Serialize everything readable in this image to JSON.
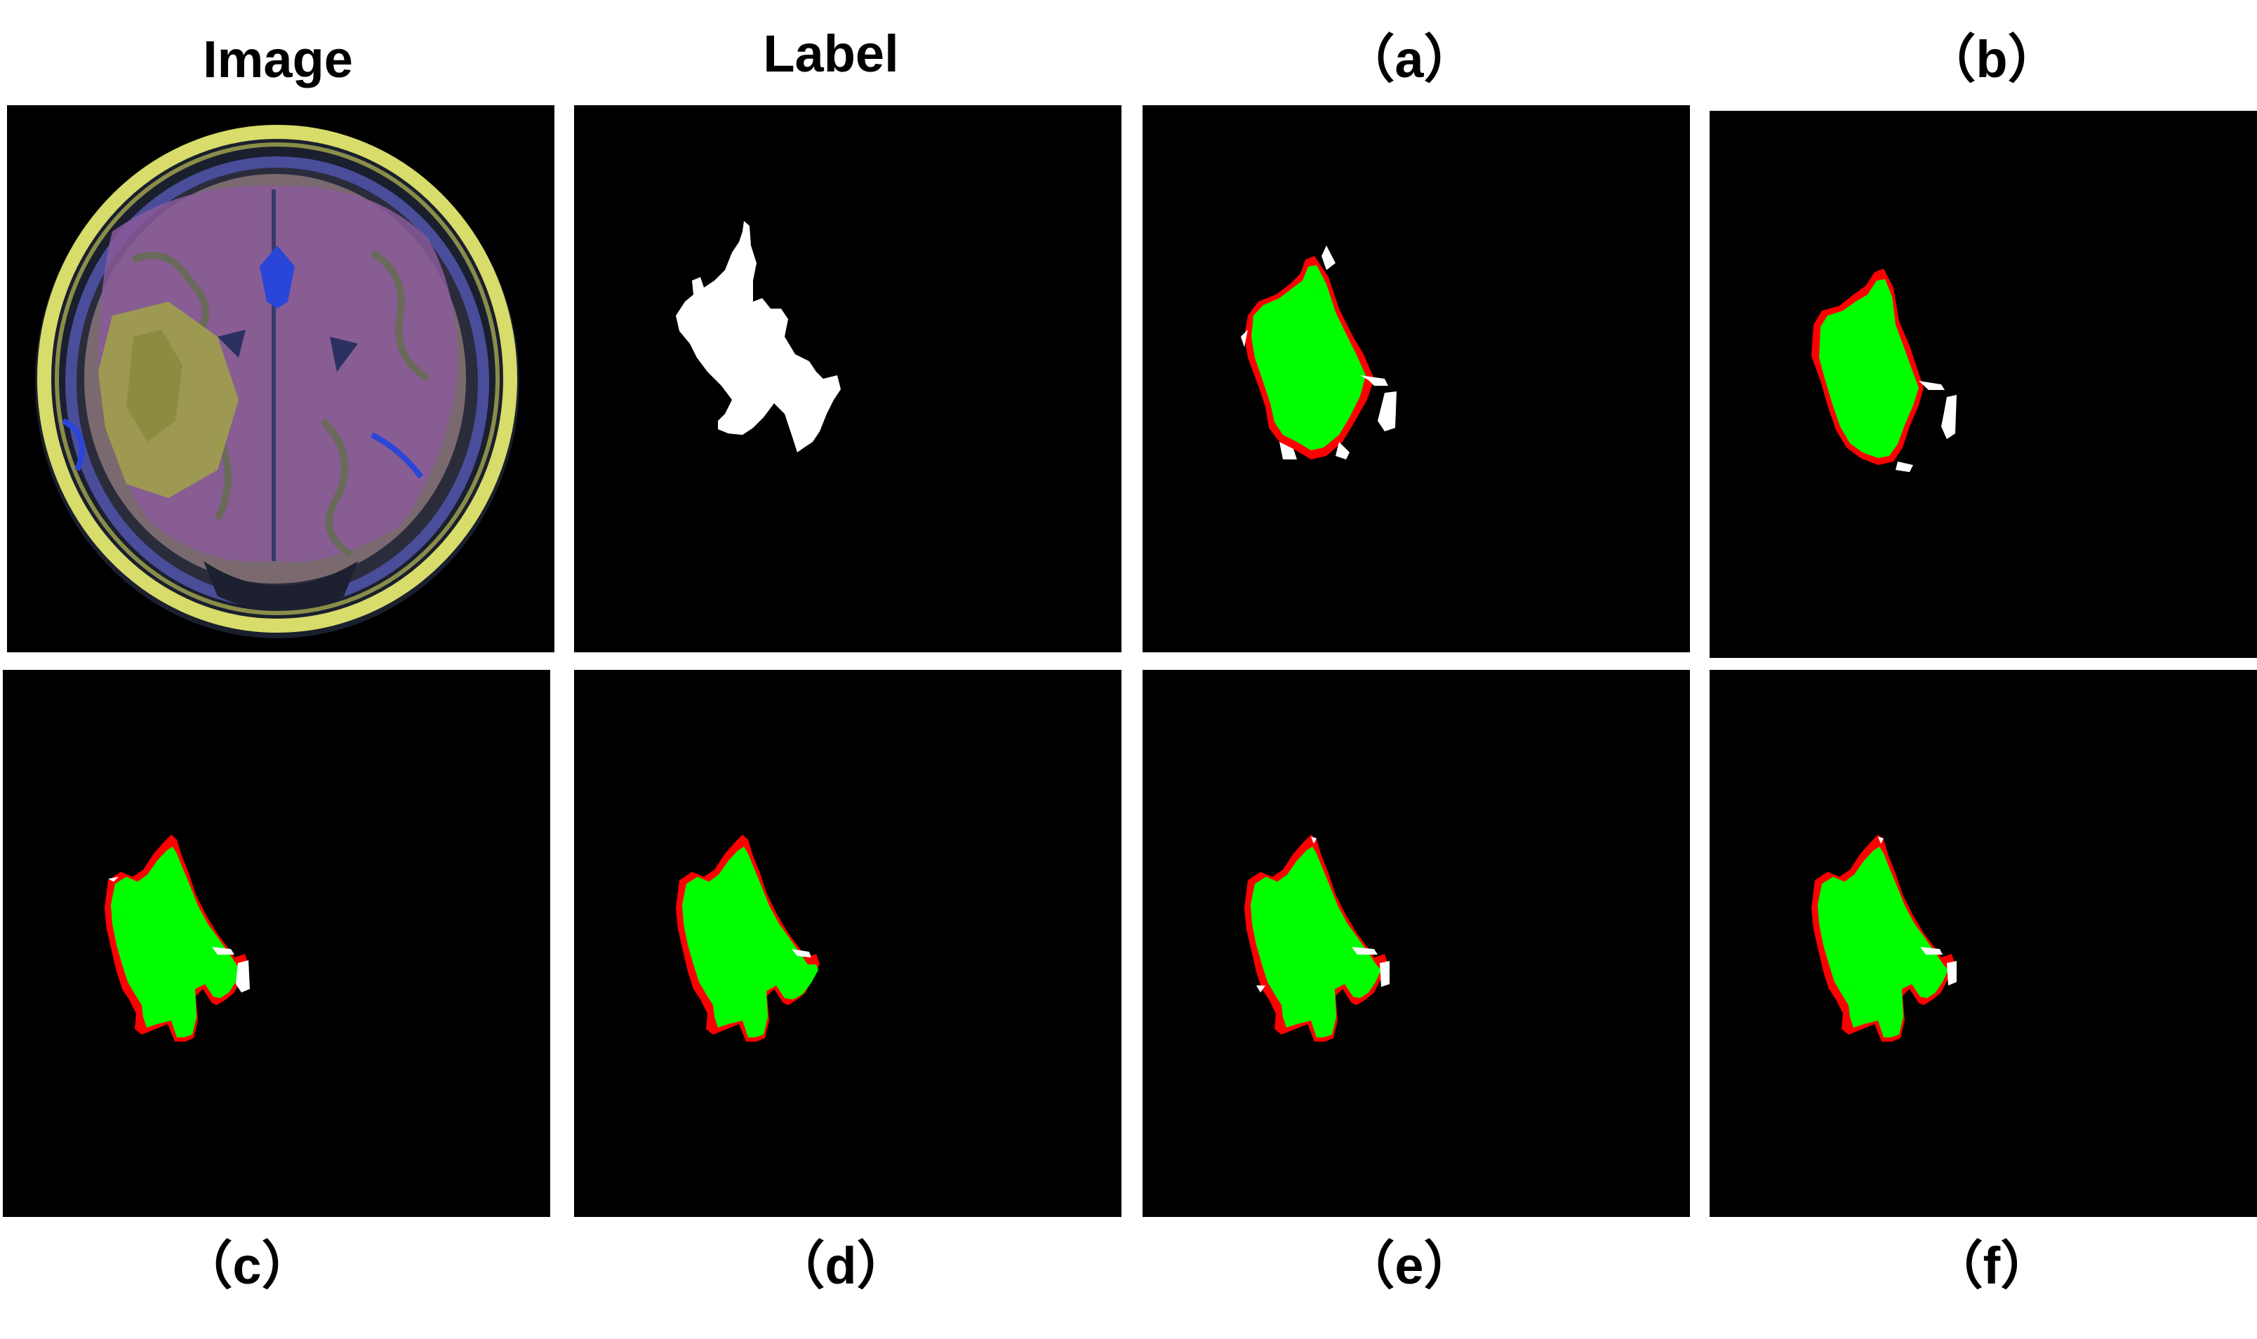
{
  "figure": {
    "captions": {
      "image": "Image",
      "label": "Label",
      "a": "（a）",
      "b": "（b）",
      "c": "（c）",
      "d": "（d）",
      "e": "（e）",
      "f": "（f）"
    },
    "colors": {
      "background": "#000000",
      "label_mask": "#ffffff",
      "agreement": "#00ff00",
      "false_positive": "#ff0000",
      "false_negative": "#ffffff"
    }
  }
}
